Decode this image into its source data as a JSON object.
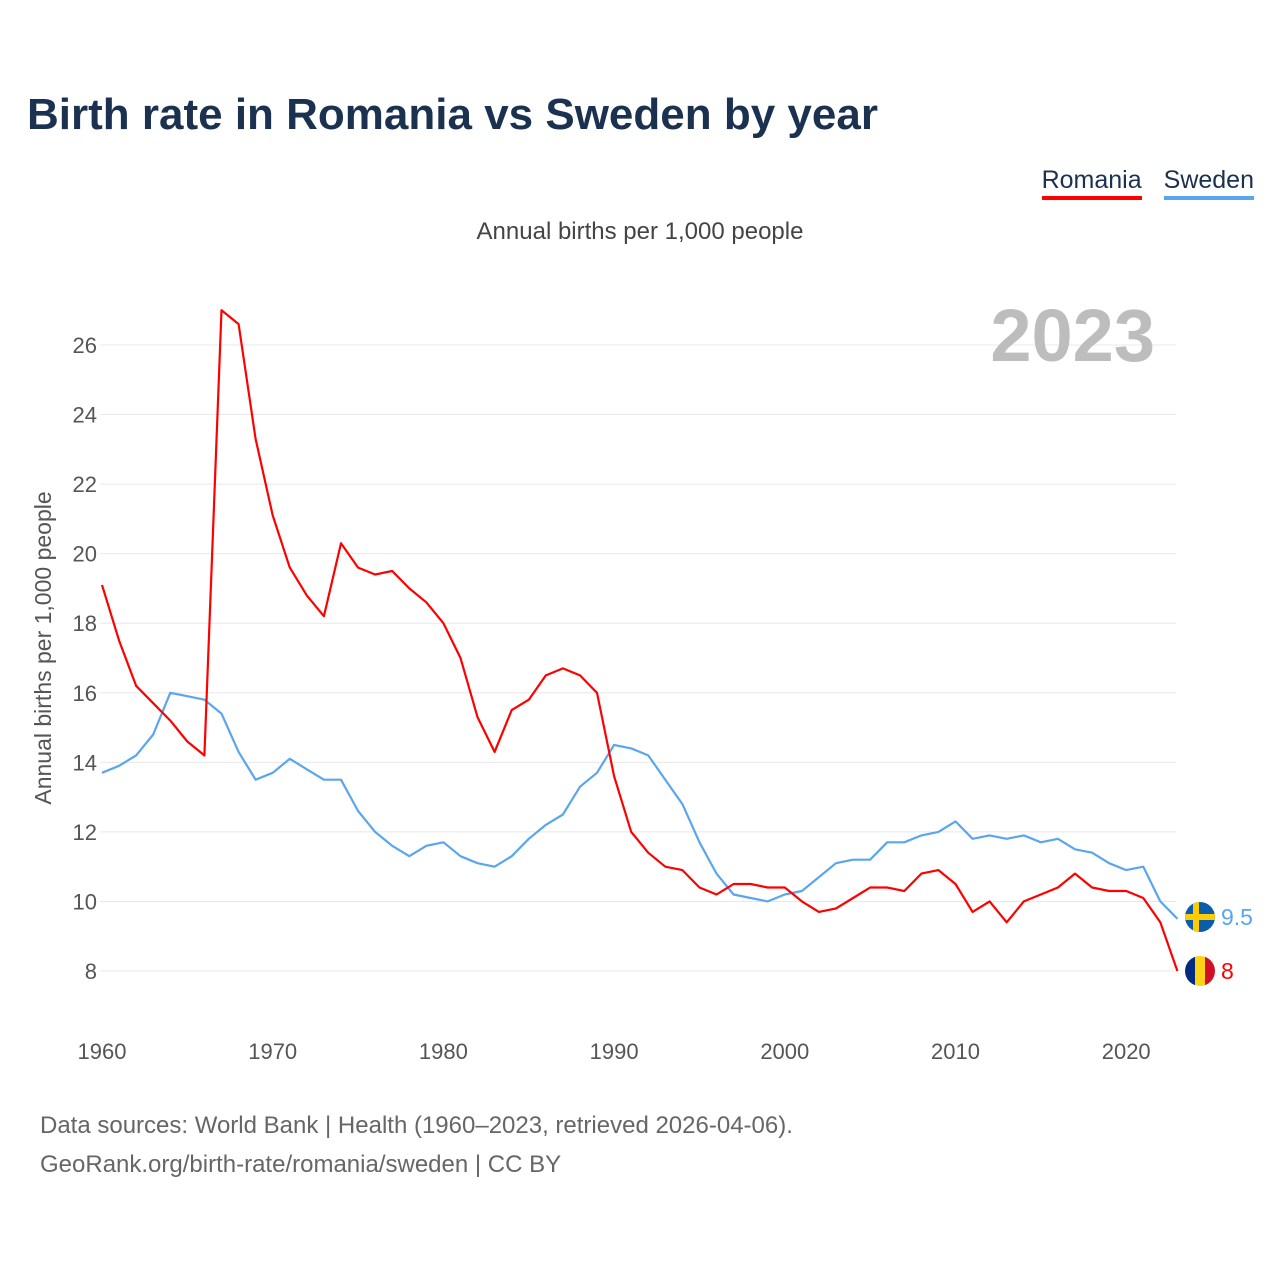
{
  "title": "Birth rate in Romania vs Sweden by year",
  "legend": [
    {
      "name": "Romania",
      "color": "#ff0000"
    },
    {
      "name": "Sweden",
      "color": "#5aa6ee"
    }
  ],
  "subtitle": "Annual births per 1,000 people",
  "footer": {
    "line1": "Data sources: World Bank | Health (1960–2023, retrieved 2026-04-06).",
    "line2": "GeoRank.org/birth-rate/romania/sweden | CC BY"
  },
  "chart_data": {
    "type": "line",
    "title": "Birth rate in Romania vs Sweden by year",
    "ylabel": "Annual births per 1,000 people",
    "xlabel": "",
    "year_label": "2023",
    "xlim": [
      1960,
      2023
    ],
    "ylim": [
      8,
      26
    ],
    "yticks": [
      "8",
      "10",
      "12",
      "14",
      "16",
      "18",
      "20",
      "22",
      "24",
      "26"
    ],
    "xticks": [
      "1960",
      "1970",
      "1980",
      "1990",
      "2000",
      "2010",
      "2020"
    ],
    "grid": true,
    "legend_position": "top-right",
    "x_start": 1960,
    "series": [
      {
        "name": "Romania",
        "color": "#ff0000",
        "end_label": "8",
        "flag": "romania-flag",
        "values": [
          19.1,
          17.5,
          16.2,
          15.7,
          15.2,
          14.6,
          14.2,
          27.0,
          26.6,
          23.3,
          21.1,
          19.6,
          18.8,
          18.2,
          20.3,
          19.6,
          19.4,
          19.5,
          19.0,
          18.6,
          18.0,
          17.0,
          15.3,
          14.3,
          15.5,
          15.8,
          16.5,
          16.7,
          16.5,
          16.0,
          13.6,
          12.0,
          11.4,
          11.0,
          10.9,
          10.4,
          10.2,
          10.5,
          10.5,
          10.4,
          10.4,
          10.0,
          9.7,
          9.8,
          10.1,
          10.4,
          10.4,
          10.3,
          10.8,
          10.9,
          10.5,
          9.7,
          10.0,
          9.4,
          10.0,
          10.2,
          10.4,
          10.8,
          10.4,
          10.3,
          10.3,
          10.1,
          9.4,
          8.0
        ]
      },
      {
        "name": "Sweden",
        "color": "#5aa6ee",
        "end_label": "9.5",
        "flag": "sweden-flag",
        "values": [
          13.7,
          13.9,
          14.2,
          14.8,
          16.0,
          15.9,
          15.8,
          15.4,
          14.3,
          13.5,
          13.7,
          14.1,
          13.8,
          13.5,
          13.5,
          12.6,
          12.0,
          11.6,
          11.3,
          11.6,
          11.7,
          11.3,
          11.1,
          11.0,
          11.3,
          11.8,
          12.2,
          12.5,
          13.3,
          13.7,
          14.5,
          14.4,
          14.2,
          13.5,
          12.8,
          11.7,
          10.8,
          10.2,
          10.1,
          10.0,
          10.2,
          10.3,
          10.7,
          11.1,
          11.2,
          11.2,
          11.7,
          11.7,
          11.9,
          12.0,
          12.3,
          11.8,
          11.9,
          11.8,
          11.9,
          11.7,
          11.8,
          11.5,
          11.4,
          11.1,
          10.9,
          11.0,
          10.0,
          9.5
        ]
      }
    ]
  }
}
